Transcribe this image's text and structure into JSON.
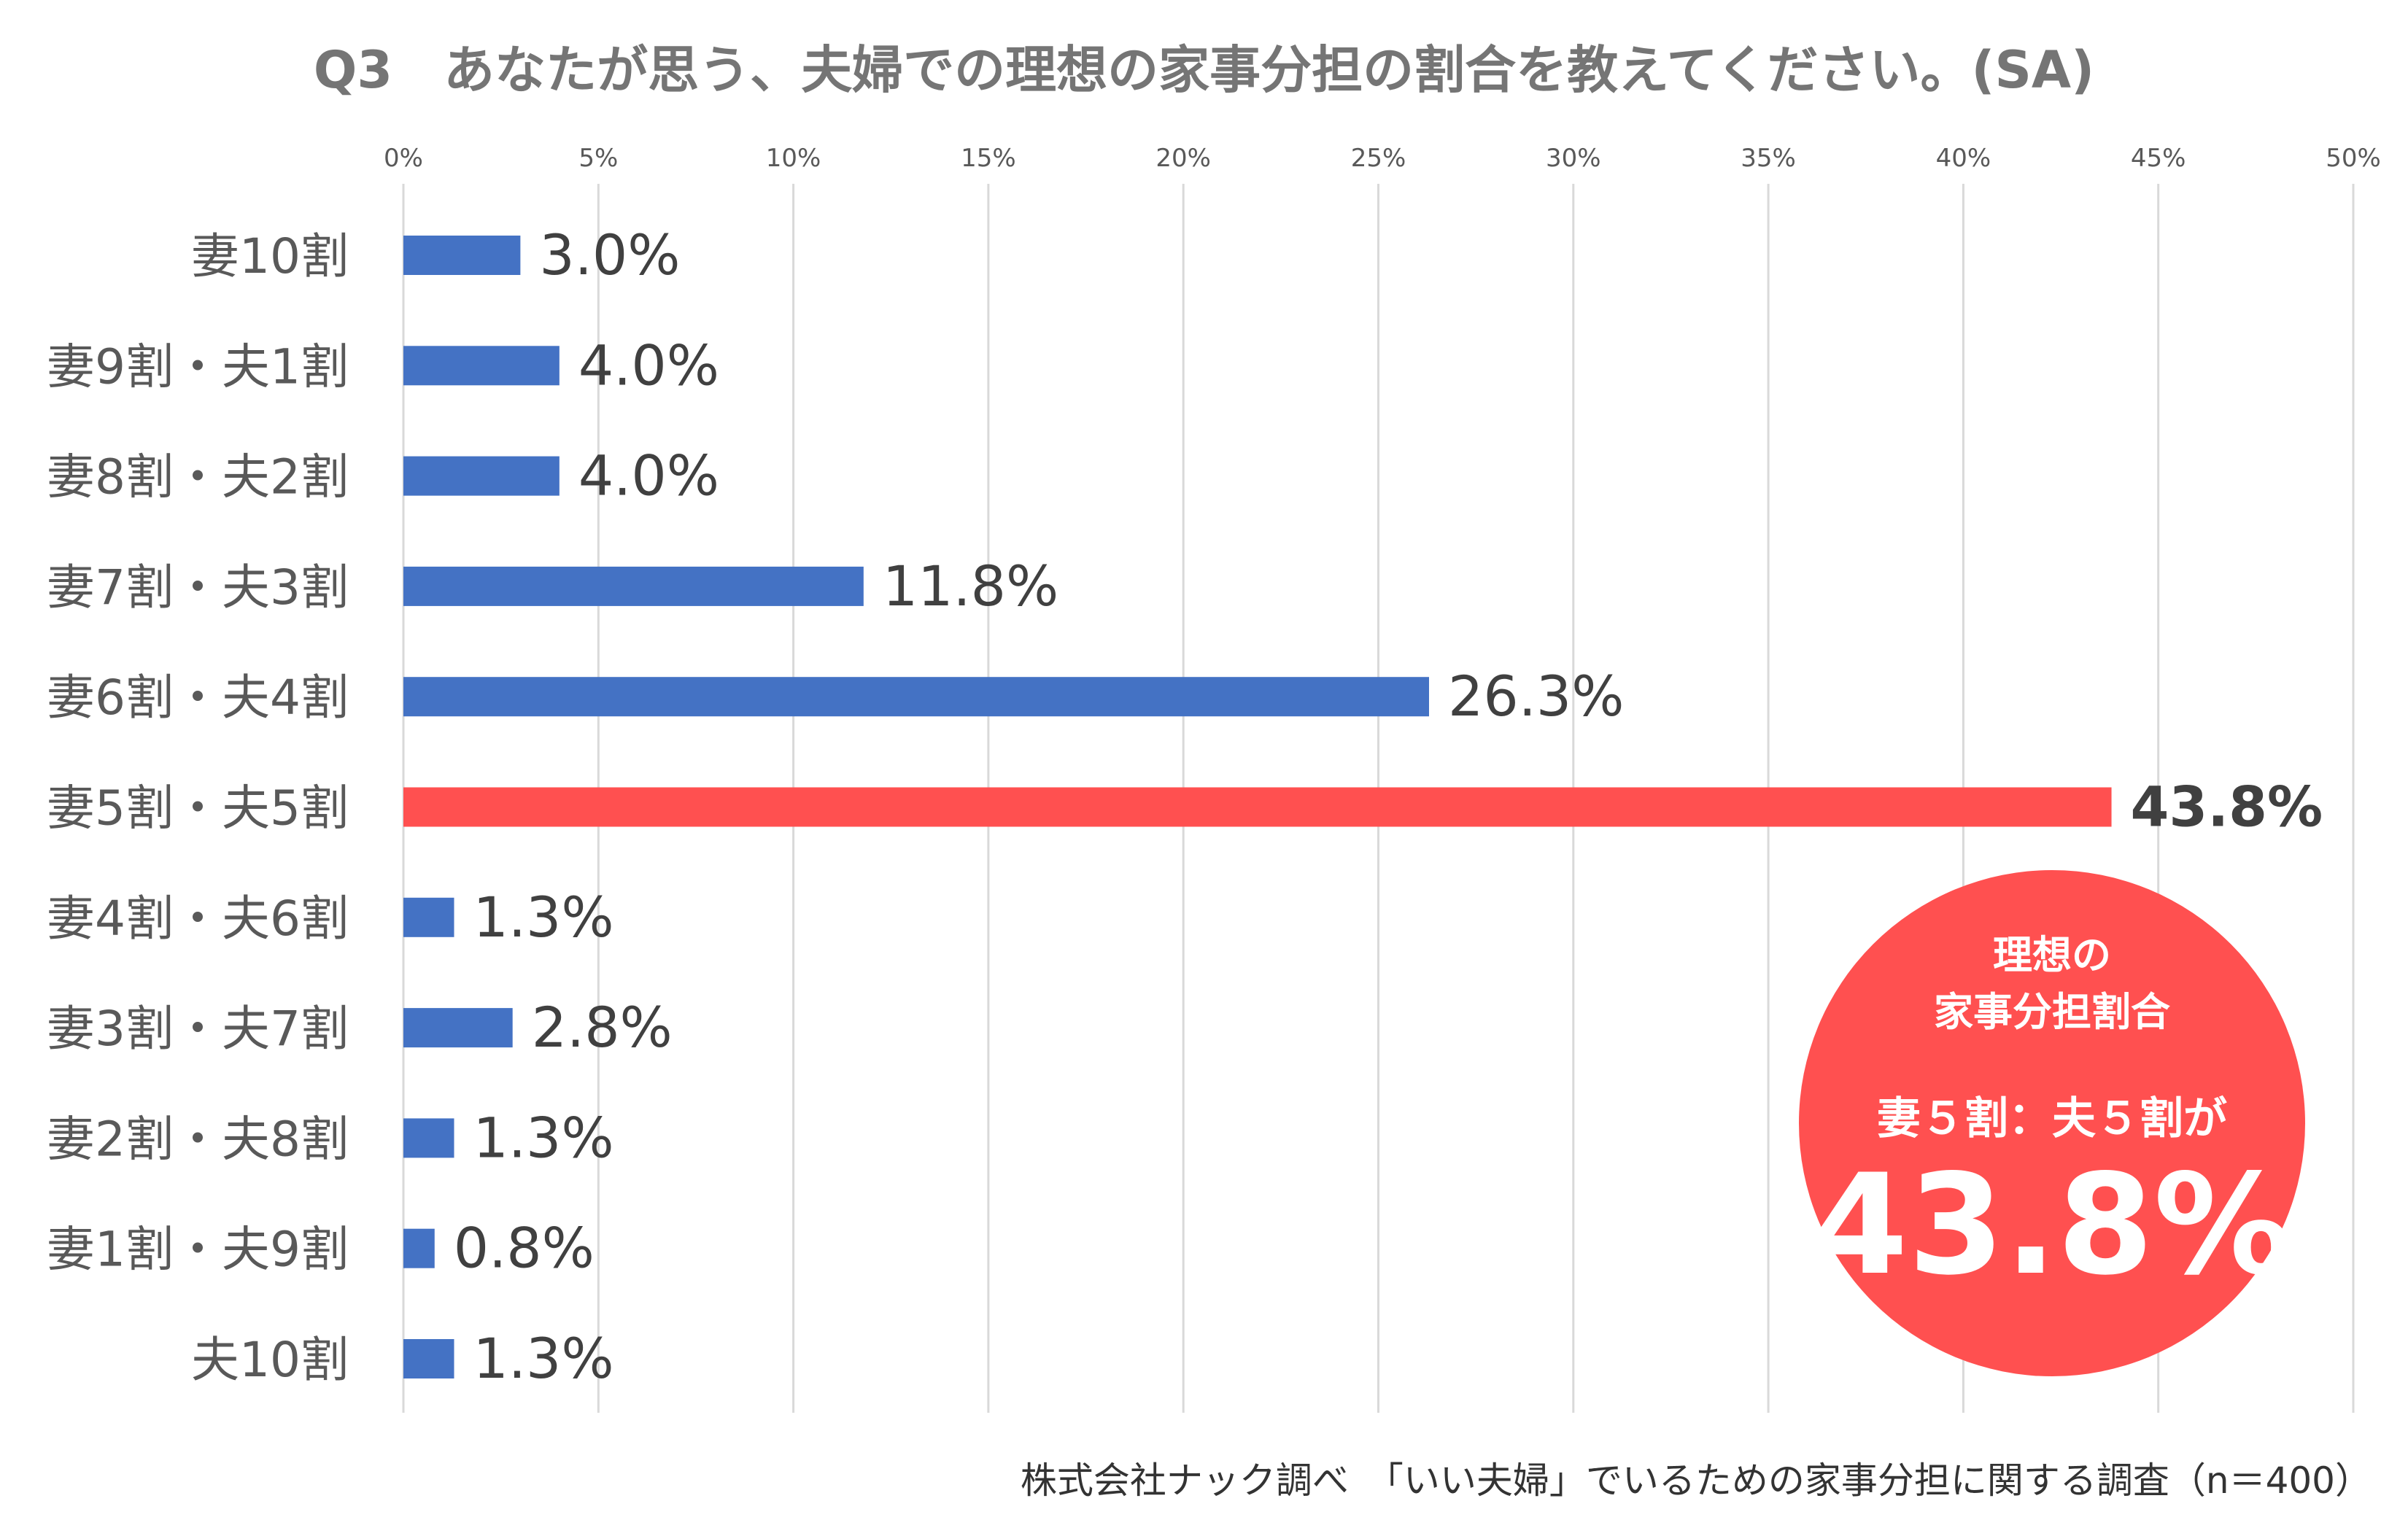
{
  "chart_data": {
    "type": "bar",
    "orientation": "horizontal",
    "title": "Q3　あなたが思う、夫婦での理想の家事分担の割合を教えてください。(SA)",
    "categories": [
      "妻10割",
      "妻9割・夫1割",
      "妻8割・夫2割",
      "妻7割・夫3割",
      "妻6割・夫4割",
      "妻5割・夫5割",
      "妻4割・夫6割",
      "妻3割・夫7割",
      "妻2割・夫8割",
      "妻1割・夫9割",
      "夫10割"
    ],
    "values": [
      3.0,
      4.0,
      4.0,
      11.8,
      26.3,
      43.8,
      1.3,
      2.8,
      1.3,
      0.8,
      1.3
    ],
    "value_labels": [
      "3.0%",
      "4.0%",
      "4.0%",
      "11.8%",
      "26.3%",
      "43.8%",
      "1.3%",
      "2.8%",
      "1.3%",
      "0.8%",
      "1.3%"
    ],
    "highlight_index": 5,
    "xlim": [
      0,
      50
    ],
    "x_ticks": [
      0,
      5,
      10,
      15,
      20,
      25,
      30,
      35,
      40,
      45,
      50
    ],
    "x_tick_labels": [
      "0%",
      "5%",
      "10%",
      "15%",
      "20%",
      "25%",
      "30%",
      "35%",
      "40%",
      "45%",
      "50%"
    ],
    "xlabel": "",
    "ylabel": "",
    "grid": true,
    "axis_position": "top",
    "colors": {
      "bar": "#4472c4",
      "highlight_bar": "#ff5050",
      "grid": "#d9d9d9"
    }
  },
  "callout": {
    "heading": "理想の\n家事分担割合",
    "subheading": "妻５割：夫５割が",
    "value": "43.8%"
  },
  "source_note": "株式会社ナック調べ　「いい夫婦」でいるための家事分担に関する調査（n＝400）"
}
